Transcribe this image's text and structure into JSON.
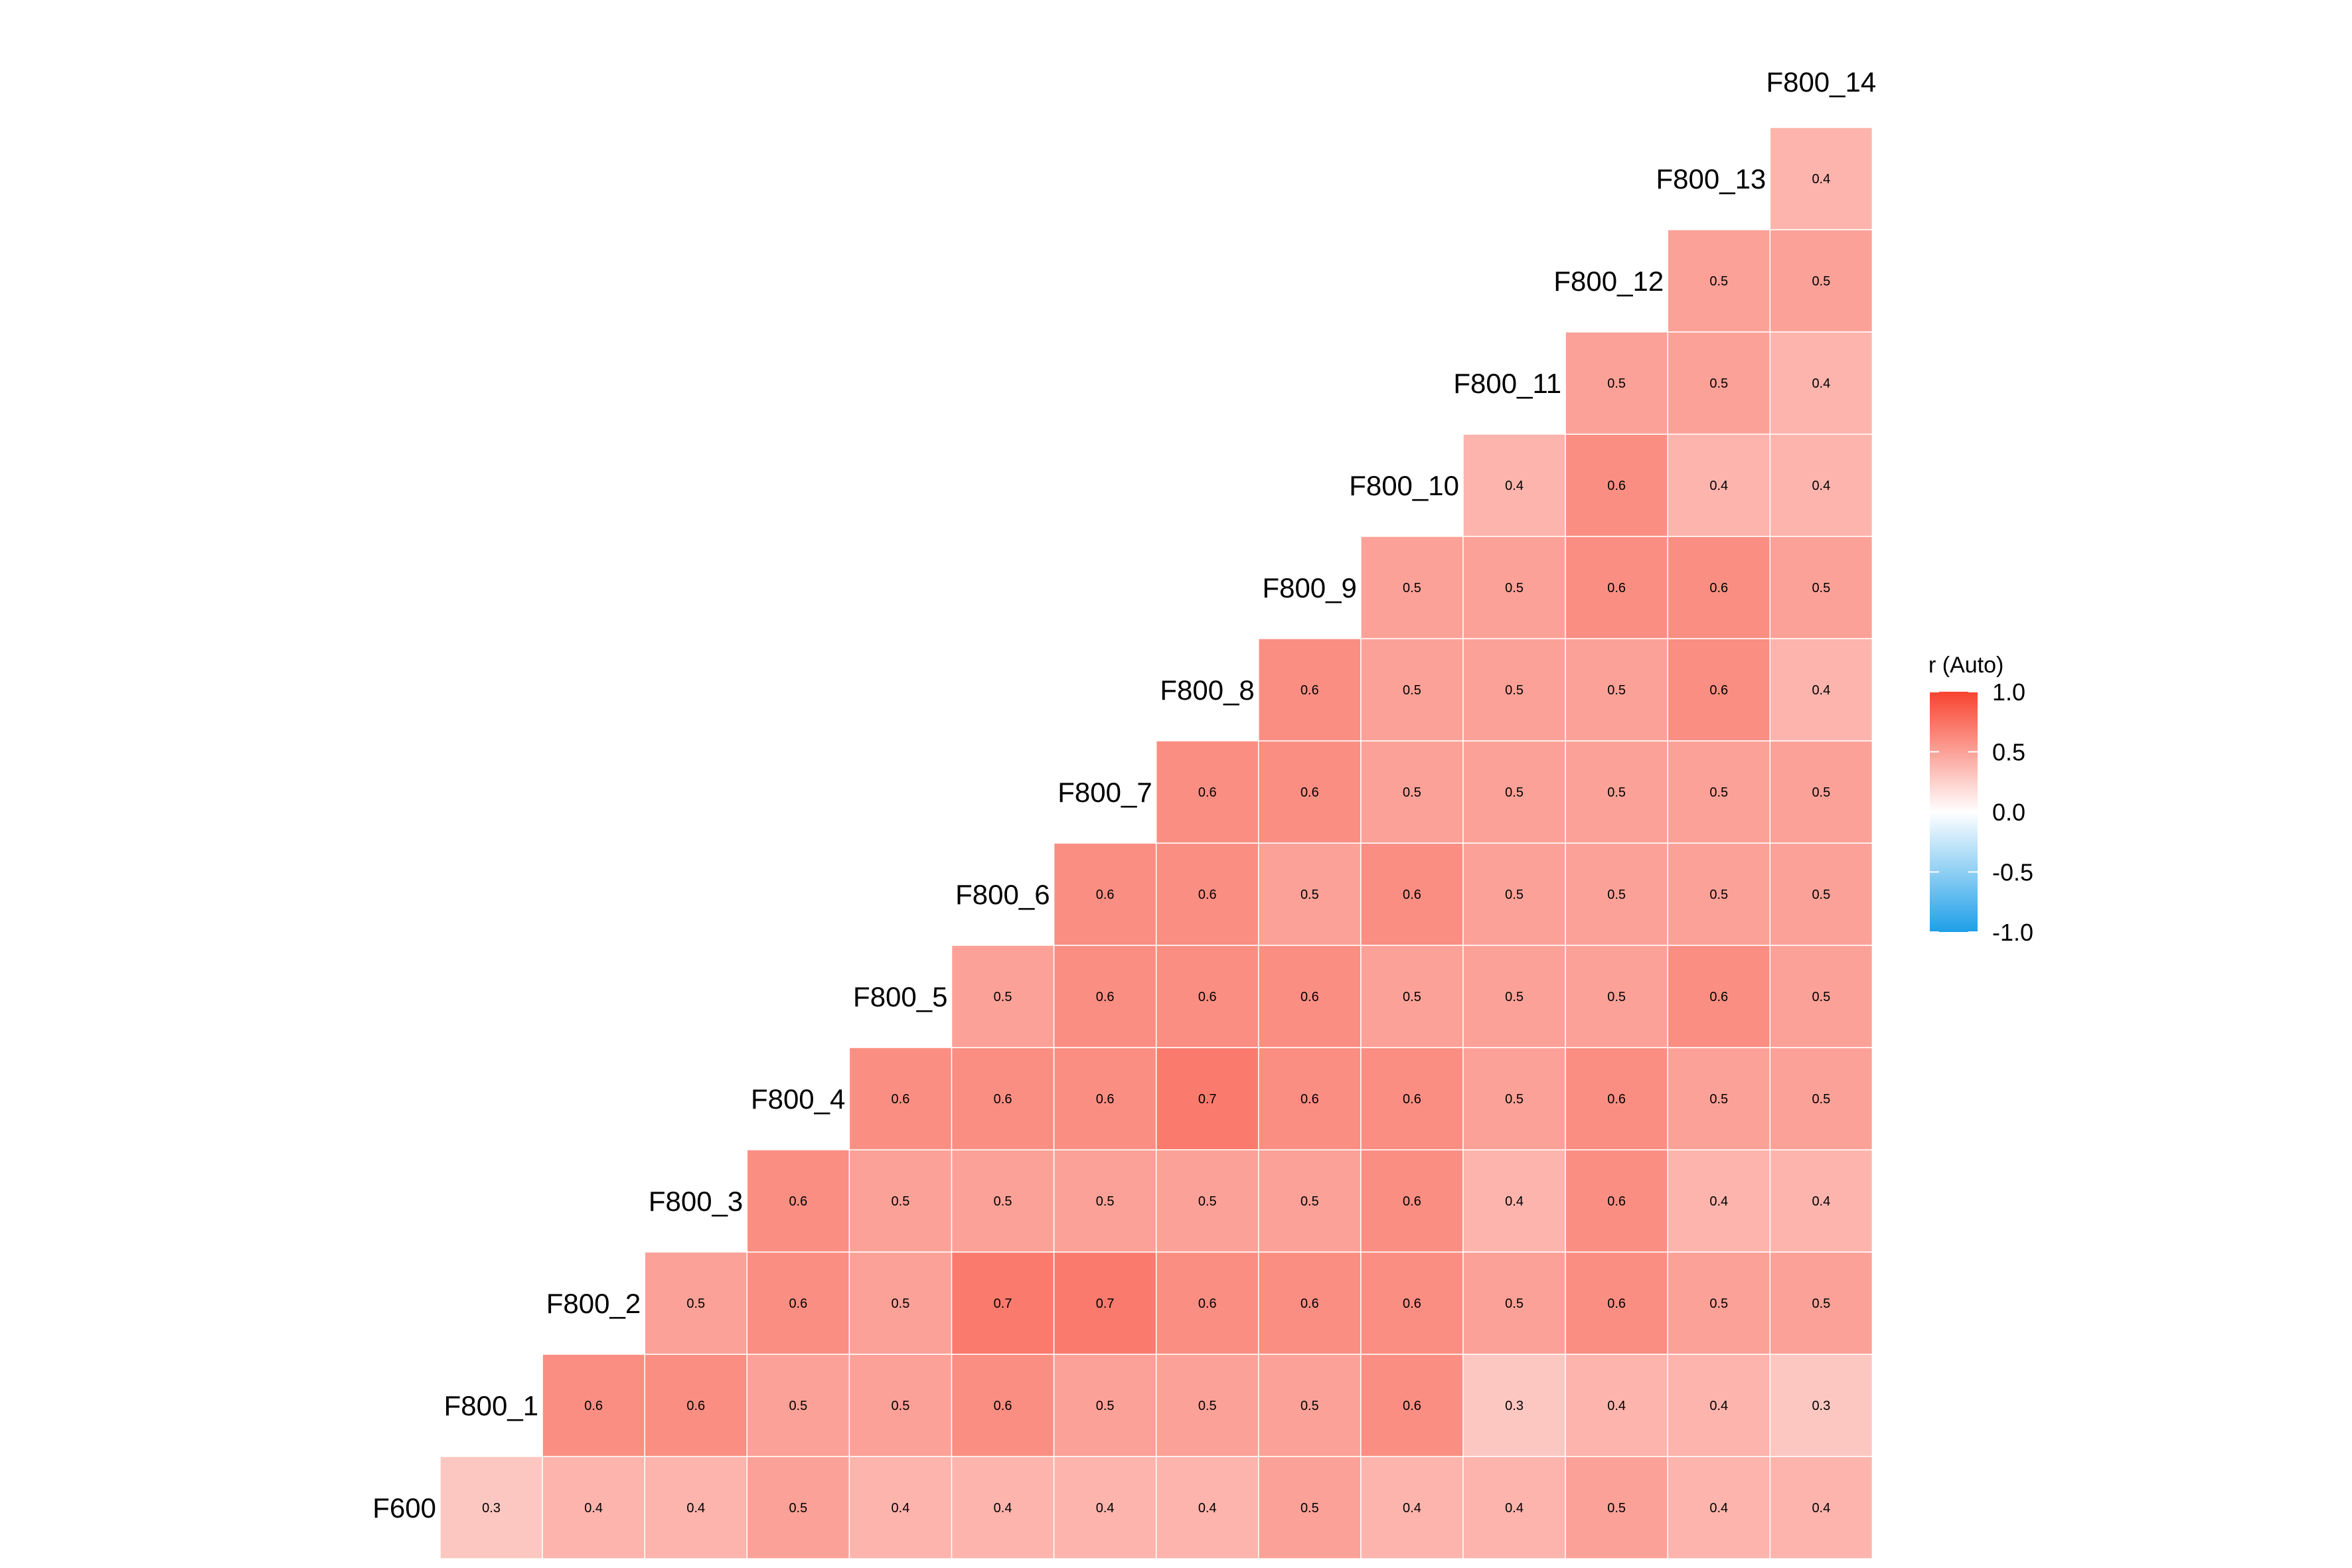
{
  "chart_data": {
    "type": "heatmap",
    "title": "",
    "x_labels": [
      "F800_1",
      "F800_2",
      "F800_3",
      "F800_4",
      "F800_5",
      "F800_6",
      "F800_7",
      "F800_8",
      "F800_9",
      "F800_10",
      "F800_11",
      "F800_12",
      "F800_13",
      "F800_14"
    ],
    "top_label": "F800_14",
    "rows": [
      {
        "label": "F600",
        "values": [
          0.3,
          0.4,
          0.4,
          0.5,
          0.4,
          0.4,
          0.4,
          0.4,
          0.5,
          0.4,
          0.4,
          0.5,
          0.4,
          0.4
        ]
      },
      {
        "label": "F800_1",
        "values": [
          0.6,
          0.6,
          0.5,
          0.5,
          0.6,
          0.5,
          0.5,
          0.5,
          0.6,
          0.3,
          0.4,
          0.4,
          0.3
        ]
      },
      {
        "label": "F800_2",
        "values": [
          0.5,
          0.6,
          0.5,
          0.7,
          0.7,
          0.6,
          0.6,
          0.6,
          0.5,
          0.6,
          0.5,
          0.5
        ]
      },
      {
        "label": "F800_3",
        "values": [
          0.6,
          0.5,
          0.5,
          0.5,
          0.5,
          0.5,
          0.6,
          0.4,
          0.6,
          0.4,
          0.4
        ]
      },
      {
        "label": "F800_4",
        "values": [
          0.6,
          0.6,
          0.6,
          0.7,
          0.6,
          0.6,
          0.5,
          0.6,
          0.5,
          0.5
        ]
      },
      {
        "label": "F800_5",
        "values": [
          0.5,
          0.6,
          0.6,
          0.6,
          0.5,
          0.5,
          0.5,
          0.6,
          0.5
        ]
      },
      {
        "label": "F800_6",
        "values": [
          0.6,
          0.6,
          0.5,
          0.6,
          0.5,
          0.5,
          0.5,
          0.5
        ]
      },
      {
        "label": "F800_7",
        "values": [
          0.6,
          0.6,
          0.5,
          0.5,
          0.5,
          0.5,
          0.5
        ]
      },
      {
        "label": "F800_8",
        "values": [
          0.6,
          0.5,
          0.5,
          0.5,
          0.6,
          0.4
        ]
      },
      {
        "label": "F800_9",
        "values": [
          0.5,
          0.5,
          0.6,
          0.6,
          0.5
        ]
      },
      {
        "label": "F800_10",
        "values": [
          0.4,
          0.6,
          0.4,
          0.4
        ]
      },
      {
        "label": "F800_11",
        "values": [
          0.5,
          0.5,
          0.4
        ]
      },
      {
        "label": "F800_12",
        "values": [
          0.5,
          0.5
        ]
      },
      {
        "label": "F800_13",
        "values": [
          0.4
        ]
      }
    ],
    "legend": {
      "title": "r (Auto)",
      "ticks": [
        "1.0",
        "0.5",
        "0.0",
        "-0.5",
        "-1.0"
      ],
      "range": [
        -1,
        1
      ],
      "placement": "right",
      "high_color": "#F8432F",
      "mid_color": "#FFFFFF",
      "low_color": "#1E9FE8"
    }
  }
}
